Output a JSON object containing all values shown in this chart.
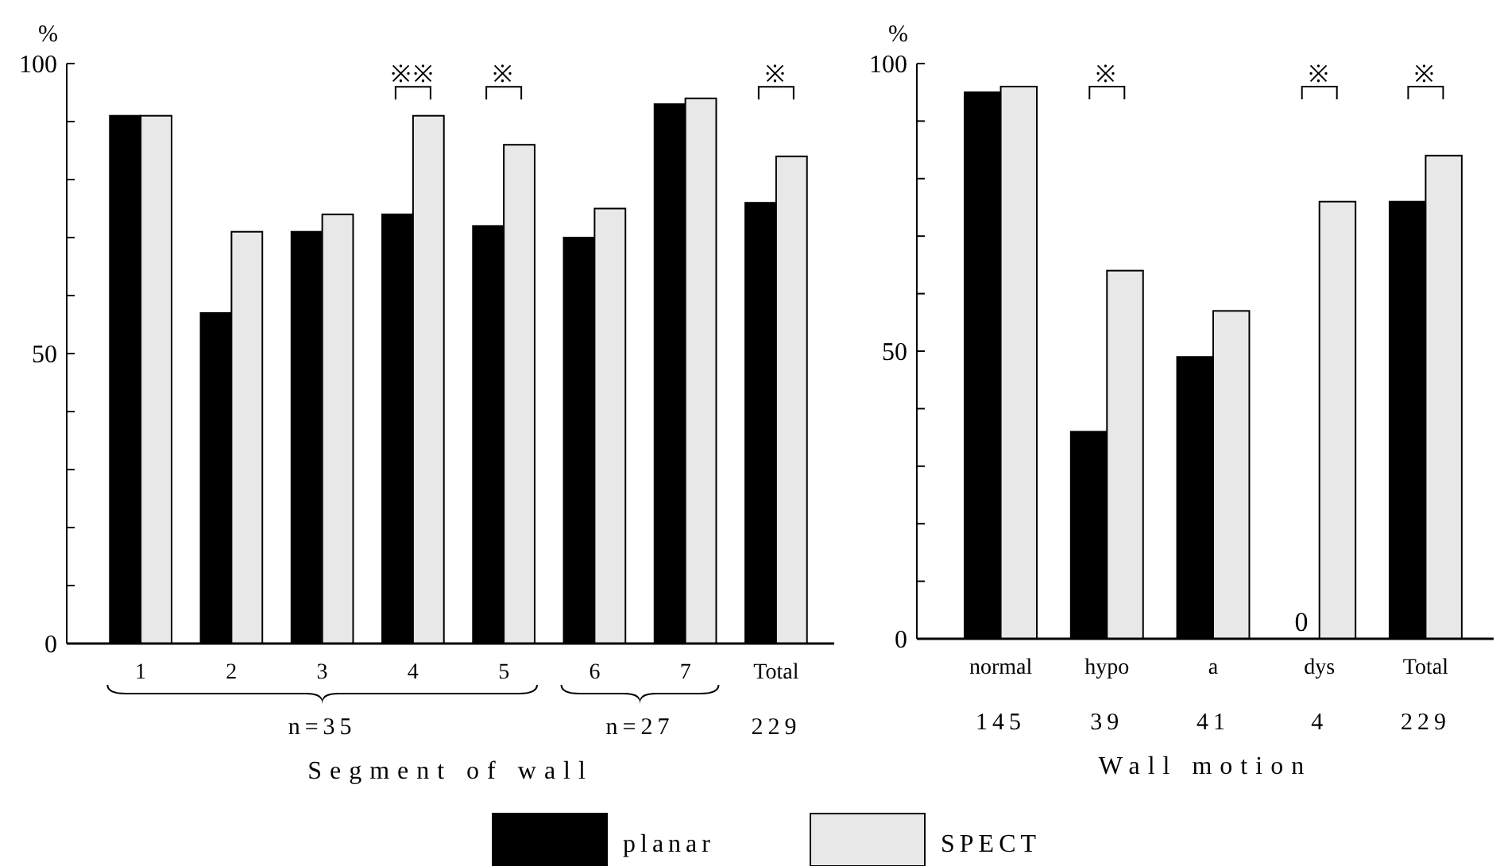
{
  "chart_data": [
    {
      "type": "bar",
      "ylabel": "%",
      "xlabel": "Segment of wall",
      "categories": [
        "1",
        "2",
        "3",
        "4",
        "5",
        "6",
        "7",
        "Total"
      ],
      "series": [
        {
          "name": "planar",
          "color": "#000000",
          "values": [
            91,
            57,
            71,
            74,
            72,
            70,
            93,
            76
          ]
        },
        {
          "name": "SPECT",
          "color": "#e8e8e8",
          "values": [
            91,
            71,
            74,
            91,
            86,
            75,
            94,
            84
          ]
        }
      ],
      "ylim": [
        0,
        100
      ],
      "yticks": [
        0,
        {
          "value": 10,
          "label": null
        },
        {
          "value": 20,
          "label": null
        },
        {
          "value": 30,
          "label": null
        },
        {
          "value": 40,
          "label": null
        },
        50,
        {
          "value": 60,
          "label": null
        },
        {
          "value": 70,
          "label": null
        },
        {
          "value": 80,
          "label": null
        },
        {
          "value": 90,
          "label": null
        },
        100
      ],
      "grid": false,
      "legend": "bottom",
      "annotations": [
        "※※",
        "※",
        "※",
        "n=35",
        "n=27",
        "229"
      ]
    },
    {
      "type": "bar",
      "ylabel": "%",
      "xlabel": "Wall motion",
      "categories": [
        "normal",
        "hypo",
        "a",
        "dys",
        "Total"
      ],
      "series": [
        {
          "color": "#000000",
          "values": [
            95,
            36,
            49,
            0,
            76
          ],
          "value_labels": [
            null,
            null,
            null,
            "0",
            null
          ]
        },
        {
          "color": "#e8e8e8",
          "values": [
            96,
            64,
            57,
            76,
            84
          ]
        }
      ],
      "ylim": [
        0,
        100
      ],
      "yticks": [
        0,
        {
          "value": 10,
          "label": null
        },
        {
          "value": 20,
          "label": null
        },
        {
          "value": 30,
          "label": null
        },
        {
          "value": 40,
          "label": null
        },
        50,
        {
          "value": 60,
          "label": null
        },
        {
          "value": 70,
          "label": null
        },
        {
          "value": 80,
          "label": null
        },
        {
          "value": 90,
          "label": null
        },
        100
      ],
      "grid": false,
      "legend": false,
      "annotations": [
        "※",
        "※",
        "※",
        "145",
        "39",
        "41",
        "4",
        "229"
      ]
    }
  ]
}
